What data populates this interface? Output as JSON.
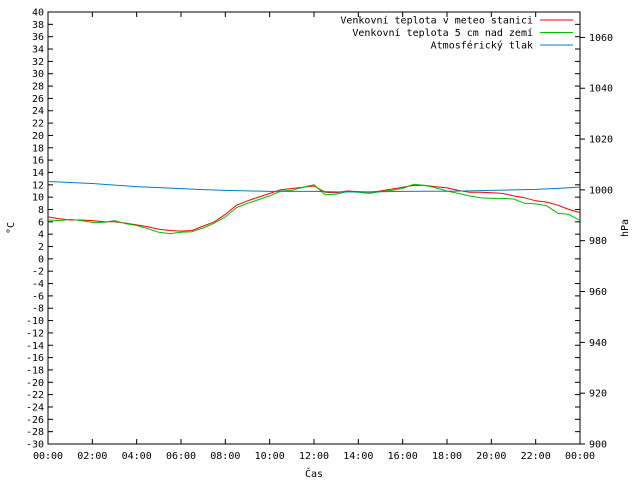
{
  "chart_data": {
    "type": "line",
    "xlabel": "Čas",
    "ylabel": "°C",
    "y2label": "hPa",
    "x_ticks": [
      "00:00",
      "02:00",
      "04:00",
      "06:00",
      "08:00",
      "10:00",
      "12:00",
      "14:00",
      "16:00",
      "18:00",
      "20:00",
      "22:00",
      "00:00"
    ],
    "xlim": [
      0,
      24
    ],
    "ylim": [
      -30,
      40
    ],
    "y_step": 2,
    "y2lim": [
      900,
      1070
    ],
    "y2_ticks": [
      900,
      920,
      940,
      960,
      980,
      1000,
      1020,
      1040,
      1060
    ],
    "grid": false,
    "legend_position": "top-right",
    "series": [
      {
        "name": "Venkovní teplota v meteo stanici",
        "color": "#ff0000",
        "axis": "left",
        "x": [
          0,
          0.5,
          1,
          1.5,
          2,
          2.5,
          3,
          3.5,
          4,
          4.5,
          5,
          5.5,
          6,
          6.5,
          7,
          7.5,
          8,
          8.5,
          9,
          9.5,
          10,
          10.5,
          11,
          11.5,
          12,
          12.5,
          13,
          13.5,
          14,
          14.5,
          15,
          15.5,
          16,
          16.5,
          17,
          17.5,
          18,
          18.5,
          19,
          19.5,
          20,
          20.5,
          21,
          21.5,
          22,
          22.5,
          23,
          23.5,
          24
        ],
        "values": [
          6.8,
          6.5,
          6.3,
          6.3,
          6.2,
          6.0,
          6.0,
          5.8,
          5.5,
          5.2,
          4.8,
          4.6,
          4.5,
          4.6,
          5.3,
          6.0,
          7.2,
          8.7,
          9.4,
          10.0,
          10.6,
          11.2,
          11.4,
          11.6,
          11.8,
          10.8,
          10.7,
          11.0,
          10.9,
          10.8,
          11.0,
          11.3,
          11.6,
          11.9,
          11.9,
          11.7,
          11.5,
          11.1,
          10.8,
          10.8,
          10.7,
          10.6,
          10.2,
          9.9,
          9.4,
          9.2,
          8.7,
          8.0,
          7.5
        ]
      },
      {
        "name": "Venkovní teplota 5 cm nad zemí",
        "color": "#00c000",
        "axis": "left",
        "x": [
          0,
          0.5,
          1,
          1.5,
          2,
          2.5,
          3,
          3.5,
          4,
          4.5,
          5,
          5.5,
          6,
          6.5,
          7,
          7.5,
          8,
          8.5,
          9,
          9.5,
          10,
          10.5,
          11,
          11.5,
          12,
          12.5,
          13,
          13.5,
          14,
          14.5,
          15,
          15.5,
          16,
          16.5,
          17,
          17.5,
          18,
          18.5,
          19,
          19.5,
          20,
          20.5,
          21,
          21.5,
          22,
          22.5,
          23,
          23.5,
          24
        ],
        "values": [
          6.3,
          6.2,
          6.4,
          6.2,
          5.9,
          5.9,
          6.2,
          5.7,
          5.4,
          4.9,
          4.3,
          4.1,
          4.3,
          4.4,
          5.0,
          5.8,
          6.8,
          8.3,
          9.0,
          9.6,
          10.2,
          11.0,
          11.1,
          11.6,
          12.0,
          10.4,
          10.5,
          10.9,
          10.8,
          10.6,
          10.9,
          11.1,
          11.4,
          12.1,
          11.9,
          11.5,
          11.0,
          10.6,
          10.2,
          9.9,
          9.8,
          9.8,
          9.7,
          9.0,
          8.9,
          8.6,
          7.4,
          7.2,
          6.2
        ]
      },
      {
        "name": "Atmosférický tlak",
        "color": "#0080c0",
        "axis": "right",
        "x": [
          0,
          1,
          2,
          3,
          4,
          5,
          6,
          7,
          8,
          9,
          10,
          11,
          12,
          13,
          14,
          15,
          16,
          17,
          18,
          19,
          20,
          21,
          22,
          23,
          24
        ],
        "values": [
          1003.3,
          1002.9,
          1002.5,
          1001.9,
          1001.3,
          1000.9,
          1000.5,
          1000.1,
          999.8,
          999.6,
          999.4,
          999.4,
          999.4,
          999.2,
          999.2,
          999.3,
          999.4,
          999.5,
          999.5,
          999.6,
          999.8,
          1000.0,
          1000.2,
          1000.6,
          1001.1
        ]
      }
    ]
  }
}
